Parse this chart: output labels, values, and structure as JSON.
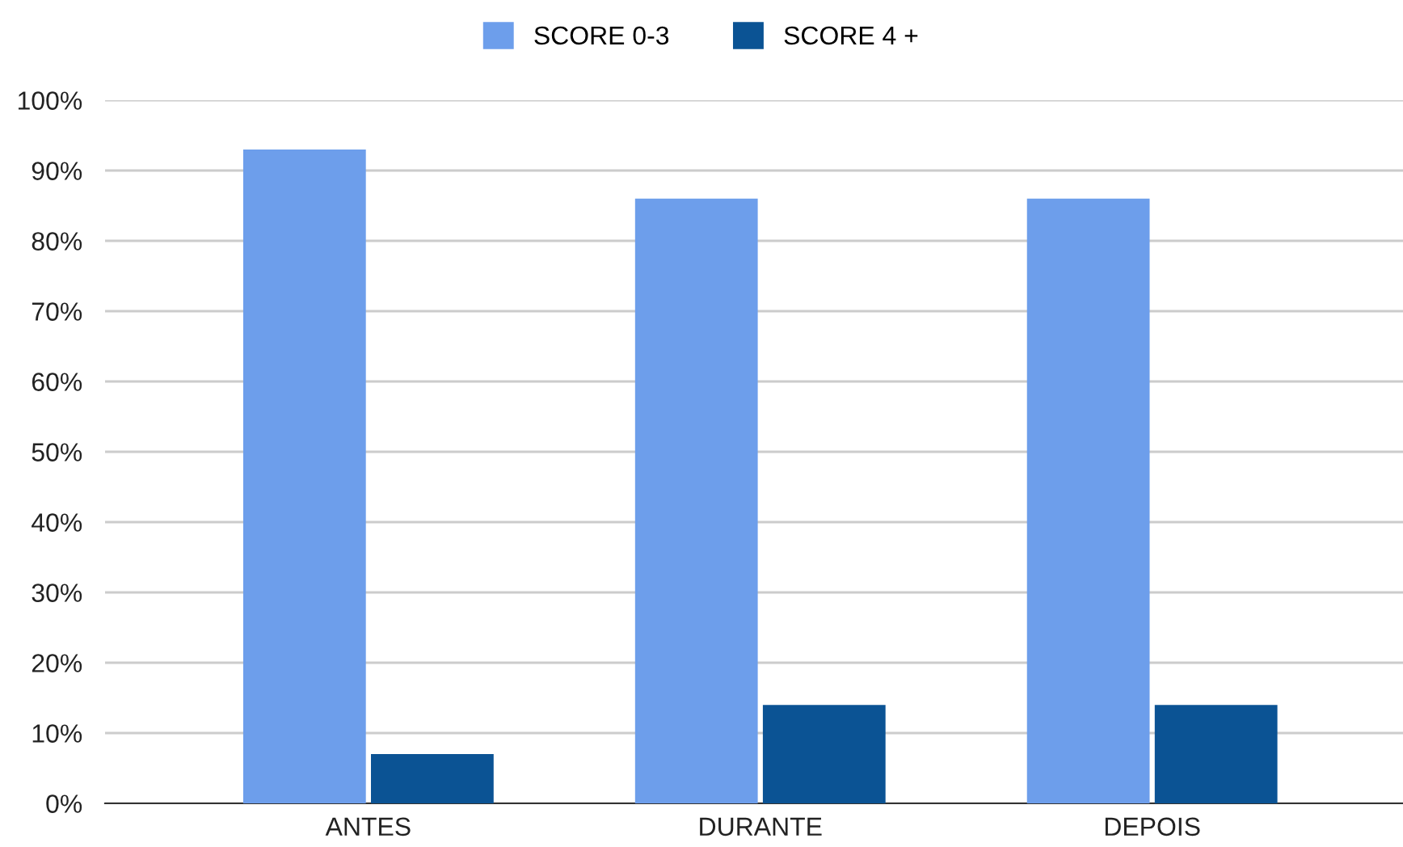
{
  "chart_data": {
    "type": "bar",
    "categories": [
      "ANTES",
      "DURANTE",
      "DEPOIS"
    ],
    "series": [
      {
        "name": "SCORE 0-3",
        "color": "#6d9eeb",
        "values": [
          93,
          86,
          86
        ]
      },
      {
        "name": "SCORE 4 +",
        "color": "#0b5394",
        "values": [
          7,
          14,
          14
        ]
      }
    ],
    "ylim": [
      0,
      100
    ],
    "yticks": [
      {
        "value": 0,
        "label": "0%"
      },
      {
        "value": 10,
        "label": "10%"
      },
      {
        "value": 20,
        "label": "20%"
      },
      {
        "value": 30,
        "label": "30%"
      },
      {
        "value": 40,
        "label": "40%"
      },
      {
        "value": 50,
        "label": "50%"
      },
      {
        "value": 60,
        "label": "60%"
      },
      {
        "value": 70,
        "label": "70%"
      },
      {
        "value": 80,
        "label": "80%"
      },
      {
        "value": 90,
        "label": "90%"
      },
      {
        "value": 100,
        "label": "100%"
      }
    ],
    "grid": "y",
    "legend": "top"
  }
}
